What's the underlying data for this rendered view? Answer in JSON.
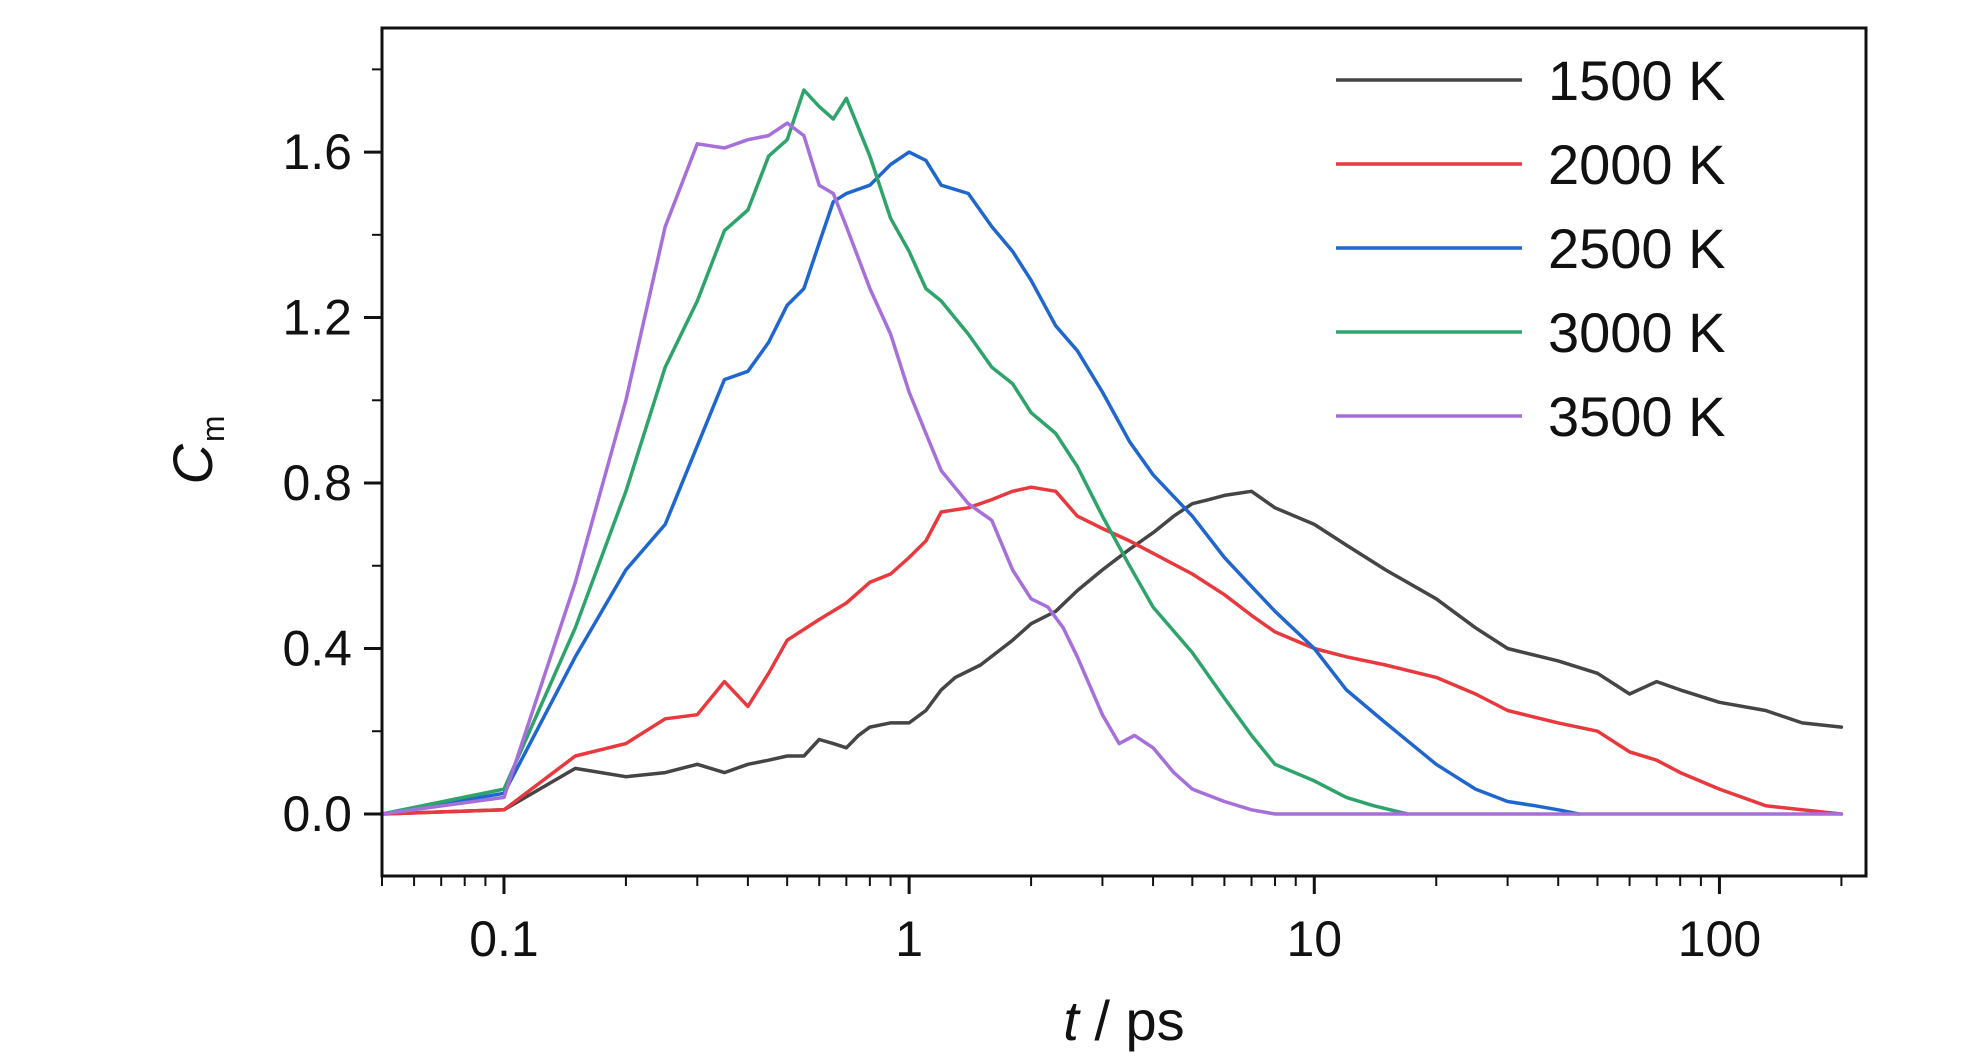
{
  "chart_data": {
    "type": "line",
    "title": "",
    "xlabel": {
      "italic": "t",
      "rest": " / ps"
    },
    "ylabel": {
      "main": "C",
      "sub": "m"
    },
    "xscale": "log",
    "xlim": [
      0.05,
      230
    ],
    "ylim": [
      -0.15,
      1.9
    ],
    "grid": false,
    "legend_position": "top-right",
    "xticks": [
      {
        "value": 0.1,
        "label": "0.1"
      },
      {
        "value": 1,
        "label": "1"
      },
      {
        "value": 10,
        "label": "10"
      },
      {
        "value": 100,
        "label": "100"
      }
    ],
    "yticks": [
      {
        "value": 0.0,
        "label": "0.0"
      },
      {
        "value": 0.4,
        "label": "0.4"
      },
      {
        "value": 0.8,
        "label": "0.8"
      },
      {
        "value": 1.2,
        "label": "1.2"
      },
      {
        "value": 1.6,
        "label": "1.6"
      }
    ],
    "series": [
      {
        "name": "1500 K",
        "color": "#454545",
        "x": [
          0.05,
          0.1,
          0.15,
          0.2,
          0.25,
          0.3,
          0.35,
          0.4,
          0.45,
          0.5,
          0.55,
          0.6,
          0.65,
          0.7,
          0.75,
          0.8,
          0.9,
          1.0,
          1.1,
          1.2,
          1.3,
          1.5,
          1.8,
          2.0,
          2.3,
          2.6,
          3.0,
          3.5,
          4.0,
          4.5,
          5.0,
          5.5,
          6.0,
          7.0,
          8.0,
          10,
          12,
          15,
          20,
          25,
          30,
          40,
          50,
          60,
          70,
          80,
          100,
          130,
          160,
          200
        ],
        "y": [
          0.0,
          0.01,
          0.11,
          0.09,
          0.1,
          0.12,
          0.1,
          0.12,
          0.13,
          0.14,
          0.14,
          0.18,
          0.17,
          0.16,
          0.19,
          0.21,
          0.22,
          0.22,
          0.25,
          0.3,
          0.33,
          0.36,
          0.42,
          0.46,
          0.49,
          0.54,
          0.59,
          0.64,
          0.68,
          0.72,
          0.75,
          0.76,
          0.77,
          0.78,
          0.74,
          0.7,
          0.65,
          0.59,
          0.52,
          0.45,
          0.4,
          0.37,
          0.34,
          0.29,
          0.32,
          0.3,
          0.27,
          0.25,
          0.22,
          0.21
        ]
      },
      {
        "name": "2000 K",
        "color": "#e8393f",
        "x": [
          0.05,
          0.1,
          0.15,
          0.2,
          0.25,
          0.3,
          0.35,
          0.4,
          0.45,
          0.5,
          0.6,
          0.7,
          0.8,
          0.9,
          1.0,
          1.1,
          1.2,
          1.4,
          1.6,
          1.8,
          2.0,
          2.3,
          2.6,
          3.0,
          3.5,
          4.0,
          5.0,
          6.0,
          7.0,
          8.0,
          10,
          12,
          15,
          20,
          25,
          30,
          40,
          50,
          60,
          70,
          80,
          100,
          130,
          160,
          200
        ],
        "y": [
          0.0,
          0.01,
          0.14,
          0.17,
          0.23,
          0.24,
          0.32,
          0.26,
          0.34,
          0.42,
          0.47,
          0.51,
          0.56,
          0.58,
          0.62,
          0.66,
          0.73,
          0.74,
          0.76,
          0.78,
          0.79,
          0.78,
          0.72,
          0.69,
          0.66,
          0.63,
          0.58,
          0.53,
          0.48,
          0.44,
          0.4,
          0.38,
          0.36,
          0.33,
          0.29,
          0.25,
          0.22,
          0.2,
          0.15,
          0.13,
          0.1,
          0.06,
          0.02,
          0.01,
          0.0
        ]
      },
      {
        "name": "2500 K",
        "color": "#1f67cf",
        "x": [
          0.05,
          0.1,
          0.15,
          0.2,
          0.25,
          0.3,
          0.35,
          0.4,
          0.45,
          0.5,
          0.55,
          0.6,
          0.65,
          0.7,
          0.8,
          0.9,
          1.0,
          1.1,
          1.2,
          1.4,
          1.6,
          1.8,
          2.0,
          2.3,
          2.6,
          3.0,
          3.5,
          4.0,
          5.0,
          6.0,
          7.0,
          8.0,
          10,
          12,
          15,
          20,
          25,
          30,
          35,
          40,
          45
        ],
        "y": [
          0.0,
          0.05,
          0.38,
          0.59,
          0.7,
          0.89,
          1.05,
          1.07,
          1.14,
          1.23,
          1.27,
          1.38,
          1.48,
          1.5,
          1.52,
          1.57,
          1.6,
          1.58,
          1.52,
          1.5,
          1.42,
          1.36,
          1.29,
          1.18,
          1.12,
          1.02,
          0.9,
          0.82,
          0.72,
          0.62,
          0.55,
          0.49,
          0.4,
          0.3,
          0.22,
          0.12,
          0.06,
          0.03,
          0.02,
          0.01,
          0.0
        ]
      },
      {
        "name": "3000 K",
        "color": "#2ea46b",
        "x": [
          0.05,
          0.1,
          0.15,
          0.2,
          0.25,
          0.3,
          0.35,
          0.4,
          0.45,
          0.5,
          0.55,
          0.6,
          0.65,
          0.7,
          0.8,
          0.9,
          1.0,
          1.1,
          1.2,
          1.4,
          1.6,
          1.8,
          2.0,
          2.3,
          2.6,
          3.0,
          3.5,
          4.0,
          5.0,
          6.0,
          7.0,
          8.0,
          10,
          12,
          14,
          17
        ],
        "y": [
          0.0,
          0.06,
          0.45,
          0.78,
          1.08,
          1.24,
          1.41,
          1.46,
          1.59,
          1.63,
          1.75,
          1.71,
          1.68,
          1.73,
          1.59,
          1.44,
          1.36,
          1.27,
          1.24,
          1.16,
          1.08,
          1.04,
          0.97,
          0.92,
          0.84,
          0.72,
          0.6,
          0.5,
          0.39,
          0.28,
          0.19,
          0.12,
          0.08,
          0.04,
          0.02,
          0.0
        ]
      },
      {
        "name": "3500 K",
        "color": "#a66fd9",
        "x": [
          0.05,
          0.1,
          0.15,
          0.2,
          0.25,
          0.3,
          0.35,
          0.4,
          0.45,
          0.5,
          0.55,
          0.6,
          0.65,
          0.7,
          0.8,
          0.9,
          1.0,
          1.1,
          1.2,
          1.4,
          1.6,
          1.8,
          2.0,
          2.2,
          2.4,
          2.6,
          3.0,
          3.3,
          3.6,
          4.0,
          4.5,
          5.0,
          6.0,
          7.0,
          8.0,
          10,
          200
        ],
        "y": [
          0.0,
          0.04,
          0.56,
          1.0,
          1.42,
          1.62,
          1.61,
          1.63,
          1.64,
          1.67,
          1.64,
          1.52,
          1.5,
          1.42,
          1.27,
          1.16,
          1.02,
          0.92,
          0.83,
          0.75,
          0.71,
          0.59,
          0.52,
          0.5,
          0.45,
          0.38,
          0.24,
          0.17,
          0.19,
          0.16,
          0.1,
          0.06,
          0.03,
          0.01,
          0.0,
          0.0,
          0.0
        ]
      }
    ]
  }
}
